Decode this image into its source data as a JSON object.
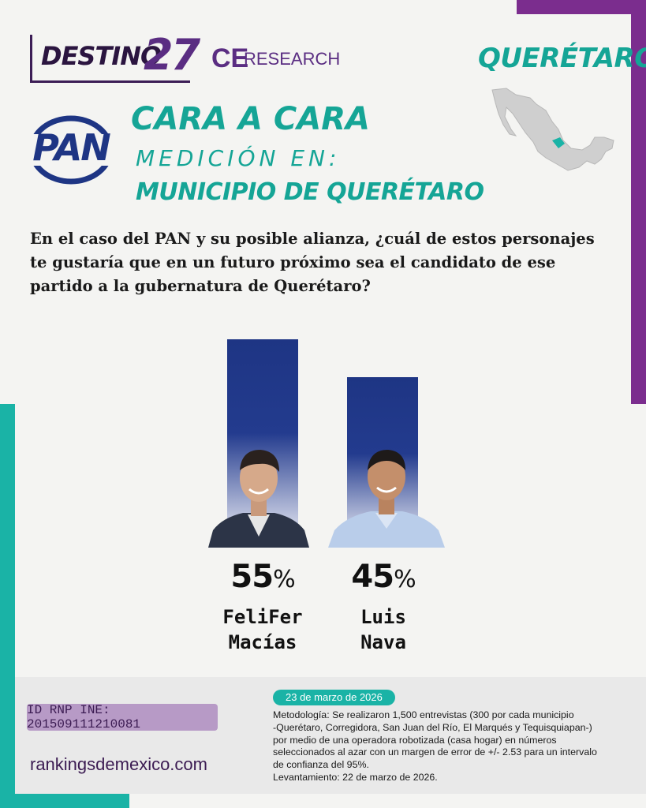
{
  "brand": {
    "destino_text": "DESTINO",
    "destino_num": "27",
    "ce": "CE",
    "research": "RESEARCH"
  },
  "state": "QUERÉTARO",
  "party_logo_text": "PAN",
  "headline": {
    "title": "CARA A CARA",
    "subtitle": "MEDICIÓN EN:",
    "place": "MUNICIPIO DE QUERÉTARO"
  },
  "question": "En el caso del PAN y su posible alianza, ¿cuál de estos personajes te gustaría que en un futuro próximo sea el candidato de ese partido a la gubernatura de Querétaro?",
  "chart_data": {
    "type": "bar",
    "categories": [
      "FeliFer Macías",
      "Luis Nava"
    ],
    "series": [
      {
        "values": [
          55,
          45
        ]
      }
    ],
    "value_labels": [
      "55",
      "45"
    ],
    "unit": "%",
    "category_labels": [
      "FeliFer\nMacías",
      "Luis\nNava"
    ],
    "ylim": [
      0,
      55
    ],
    "grid": false,
    "bar_gradient": [
      "#1e3584",
      "#ffffff"
    ]
  },
  "footer": {
    "id_label": "ID RNP INE: 201509111210081",
    "website": "rankingsdemexico.com",
    "date": "23 de marzo de 2026",
    "methodology": "Metodología: Se realizaron 1,500 entrevistas (300 por cada municipio\n-Querétaro, Corregidora, San Juan del Río, El Marqués y Tequisquiapan-)\npor medio de una operadora robotizada (casa hogar) en números\nseleccionados al azar con un margen de error de +/- 2.53 para un intervalo\nde confianza del 95%.\nLevantamiento: 22 de marzo de 2026."
  },
  "colors": {
    "purple": "#7b2d8e",
    "teal": "#1ab3a6",
    "bar_blue": "#1e3584",
    "id_box": "#b79ac6"
  }
}
